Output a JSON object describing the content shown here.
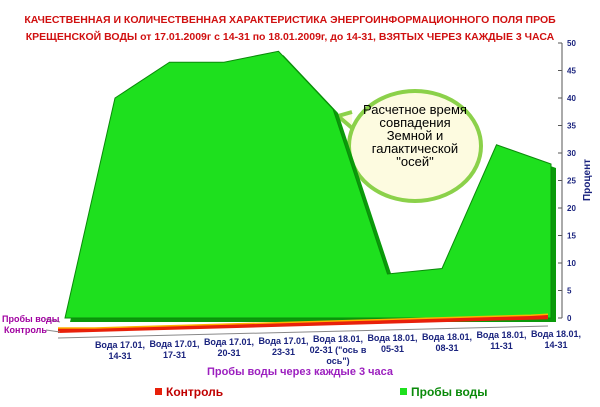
{
  "chart_data": {
    "type": "area",
    "title": "КАЧЕСТВЕННАЯ И КОЛИЧЕСТВЕННАЯ ХАРАКТЕРИСТИКА ЭНЕРГОИНФОРМАЦИОННОГО ПОЛЯ ПРОБ",
    "subtitle": "КРЕЩЕНСКОЙ ВОДЫ от 17.01.2009г с 14-31 по 18.01.2009г, до 14-31, ВЗЯТЫХ ЧЕРЕЗ КАЖДЫЕ 3 ЧАСА",
    "categories": [
      "Вода 17.01, 14-31",
      "Вода 17.01, 17-31",
      "Вода 17.01, 20-31",
      "Вода 17.01, 23-31",
      "Вода 18.01, 02-31 (\"ось в ось\")",
      "Вода 18.01, 05-31",
      "Вода 18.01, 08-31",
      "Вода 18.01, 11-31",
      "Вода 18.01, 14-31"
    ],
    "series": [
      {
        "name": "Контроль",
        "color": "#e8200a",
        "values": [
          0,
          0,
          0,
          0,
          0,
          0,
          0,
          0,
          0
        ]
      },
      {
        "name": "Пробы воды",
        "color": "#1ee01e",
        "values": [
          40,
          46.5,
          46.5,
          48.5,
          38,
          8,
          9,
          31.5,
          28
        ]
      }
    ],
    "x_label": "Пробы воды через каждые 3 часа",
    "y_label": "Процент",
    "ylim": [
      0,
      50
    ],
    "yticks": [
      0,
      5,
      10,
      15,
      20,
      25,
      30,
      35,
      40,
      45,
      50
    ],
    "annotation": "Расчетное время совпадения Земной и галактической \"осей\""
  }
}
